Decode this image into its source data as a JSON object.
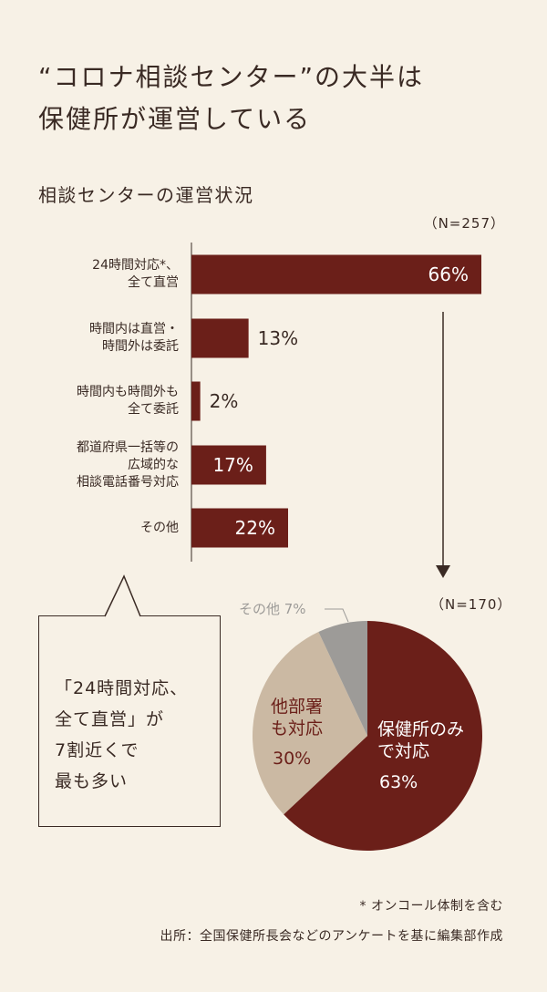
{
  "headline": {
    "line1": "“コロナ相談センター”の大半は",
    "line2": "保健所が運営している"
  },
  "callout": {
    "lines": [
      "「24時間対応、",
      "全て直営」が",
      "7割近くで",
      "最も多い"
    ]
  },
  "footnote": "* オンコール体制を含む",
  "source": "出所：全国保健所長会などのアンケートを基に編集部作成",
  "colors": {
    "background": "#f7f1e6",
    "bar": "#6b1f19",
    "pie_main": "#6b1f19",
    "pie_other_dept": "#cbb9a3",
    "pie_other": "#9d9b98",
    "text": "#3a2a24"
  },
  "chart_data": [
    {
      "type": "bar",
      "orientation": "horizontal",
      "title": "相談センターの運営状況",
      "n_label": "（N=257）",
      "categories": [
        [
          "24時間対応*、",
          "全て直営"
        ],
        [
          "時間内は直営・",
          "時間外は委託"
        ],
        [
          "時間内も時間外も",
          "全て委託"
        ],
        [
          "都道府県一括等の",
          "広域的な",
          "相談電話番号対応"
        ],
        [
          "その他"
        ]
      ],
      "values": [
        66,
        13,
        2,
        17,
        22
      ],
      "value_labels": [
        "66%",
        "13%",
        "2%",
        "17%",
        "22%"
      ],
      "unit": "%",
      "xlim": [
        0,
        66
      ]
    },
    {
      "type": "pie",
      "n_label": "（N=170）",
      "slices": [
        {
          "label": [
            "保健所のみ",
            "で対応"
          ],
          "value": 63,
          "value_label": "63%",
          "color": "#6b1f19",
          "label_color": "#ffffff"
        },
        {
          "label": [
            "他部署",
            "も対応"
          ],
          "value": 30,
          "value_label": "30%",
          "color": "#cbb9a3",
          "label_color": "#6b1f19"
        },
        {
          "label": [
            "その他"
          ],
          "value": 7,
          "value_label": "7%",
          "color": "#9d9b98",
          "label_color": "#9d9b98"
        }
      ]
    }
  ]
}
